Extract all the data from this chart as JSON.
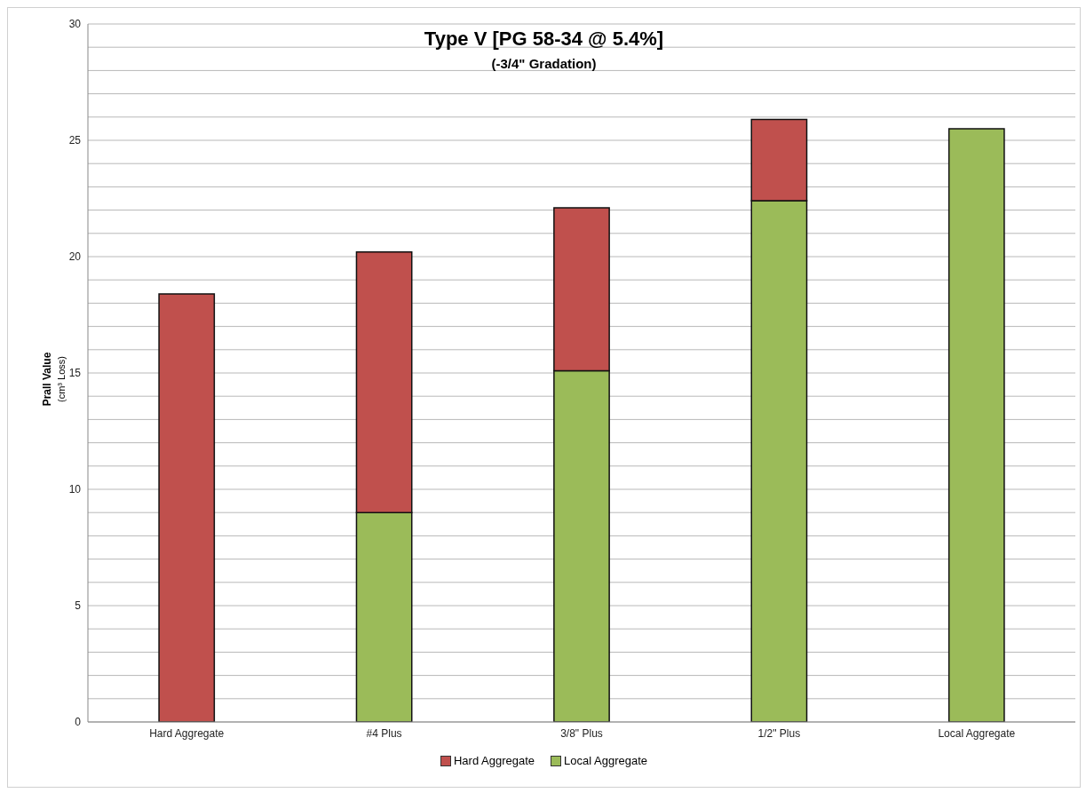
{
  "chart_data": {
    "type": "bar",
    "title": "Type V [PG 58-34 @ 5.4%]",
    "subtitle": "(-3/4\" Gradation)",
    "ylabel": "Prall Value\n(cm³ Loss)",
    "categories": [
      "Hard Aggregate",
      "#4 Plus",
      "3/8\" Plus",
      "1/2\" Plus",
      "Local Aggregate"
    ],
    "stacked": true,
    "series": [
      {
        "name": "Local Aggregate",
        "color": "#9bbb59",
        "values": [
          null,
          9.0,
          15.1,
          22.4,
          25.5
        ]
      },
      {
        "name": "Hard Aggregate",
        "color": "#c0504d",
        "values": [
          18.4,
          11.2,
          7.0,
          3.5,
          null
        ]
      }
    ],
    "ylim": [
      0,
      30
    ],
    "yticks": [
      0,
      {
        "value": 1,
        "label": null
      },
      {
        "value": 2,
        "label": null
      },
      {
        "value": 3,
        "label": null
      },
      {
        "value": 4,
        "label": null
      },
      5,
      {
        "value": 6,
        "label": null
      },
      {
        "value": 7,
        "label": null
      },
      {
        "value": 8,
        "label": null
      },
      {
        "value": 9,
        "label": null
      },
      10,
      {
        "value": 11,
        "label": null
      },
      {
        "value": 12,
        "label": null
      },
      {
        "value": 13,
        "label": null
      },
      {
        "value": 14,
        "label": null
      },
      15,
      {
        "value": 16,
        "label": null
      },
      {
        "value": 17,
        "label": null
      },
      {
        "value": 18,
        "label": null
      },
      {
        "value": 19,
        "label": null
      },
      20,
      {
        "value": 21,
        "label": null
      },
      {
        "value": 22,
        "label": null
      },
      {
        "value": 23,
        "label": null
      },
      {
        "value": 24,
        "label": null
      },
      25,
      {
        "value": 26,
        "label": null
      },
      {
        "value": 27,
        "label": null
      },
      {
        "value": 28,
        "label": null
      },
      {
        "value": 29,
        "label": null
      },
      30
    ],
    "grid": "y",
    "legend": "bottom"
  }
}
